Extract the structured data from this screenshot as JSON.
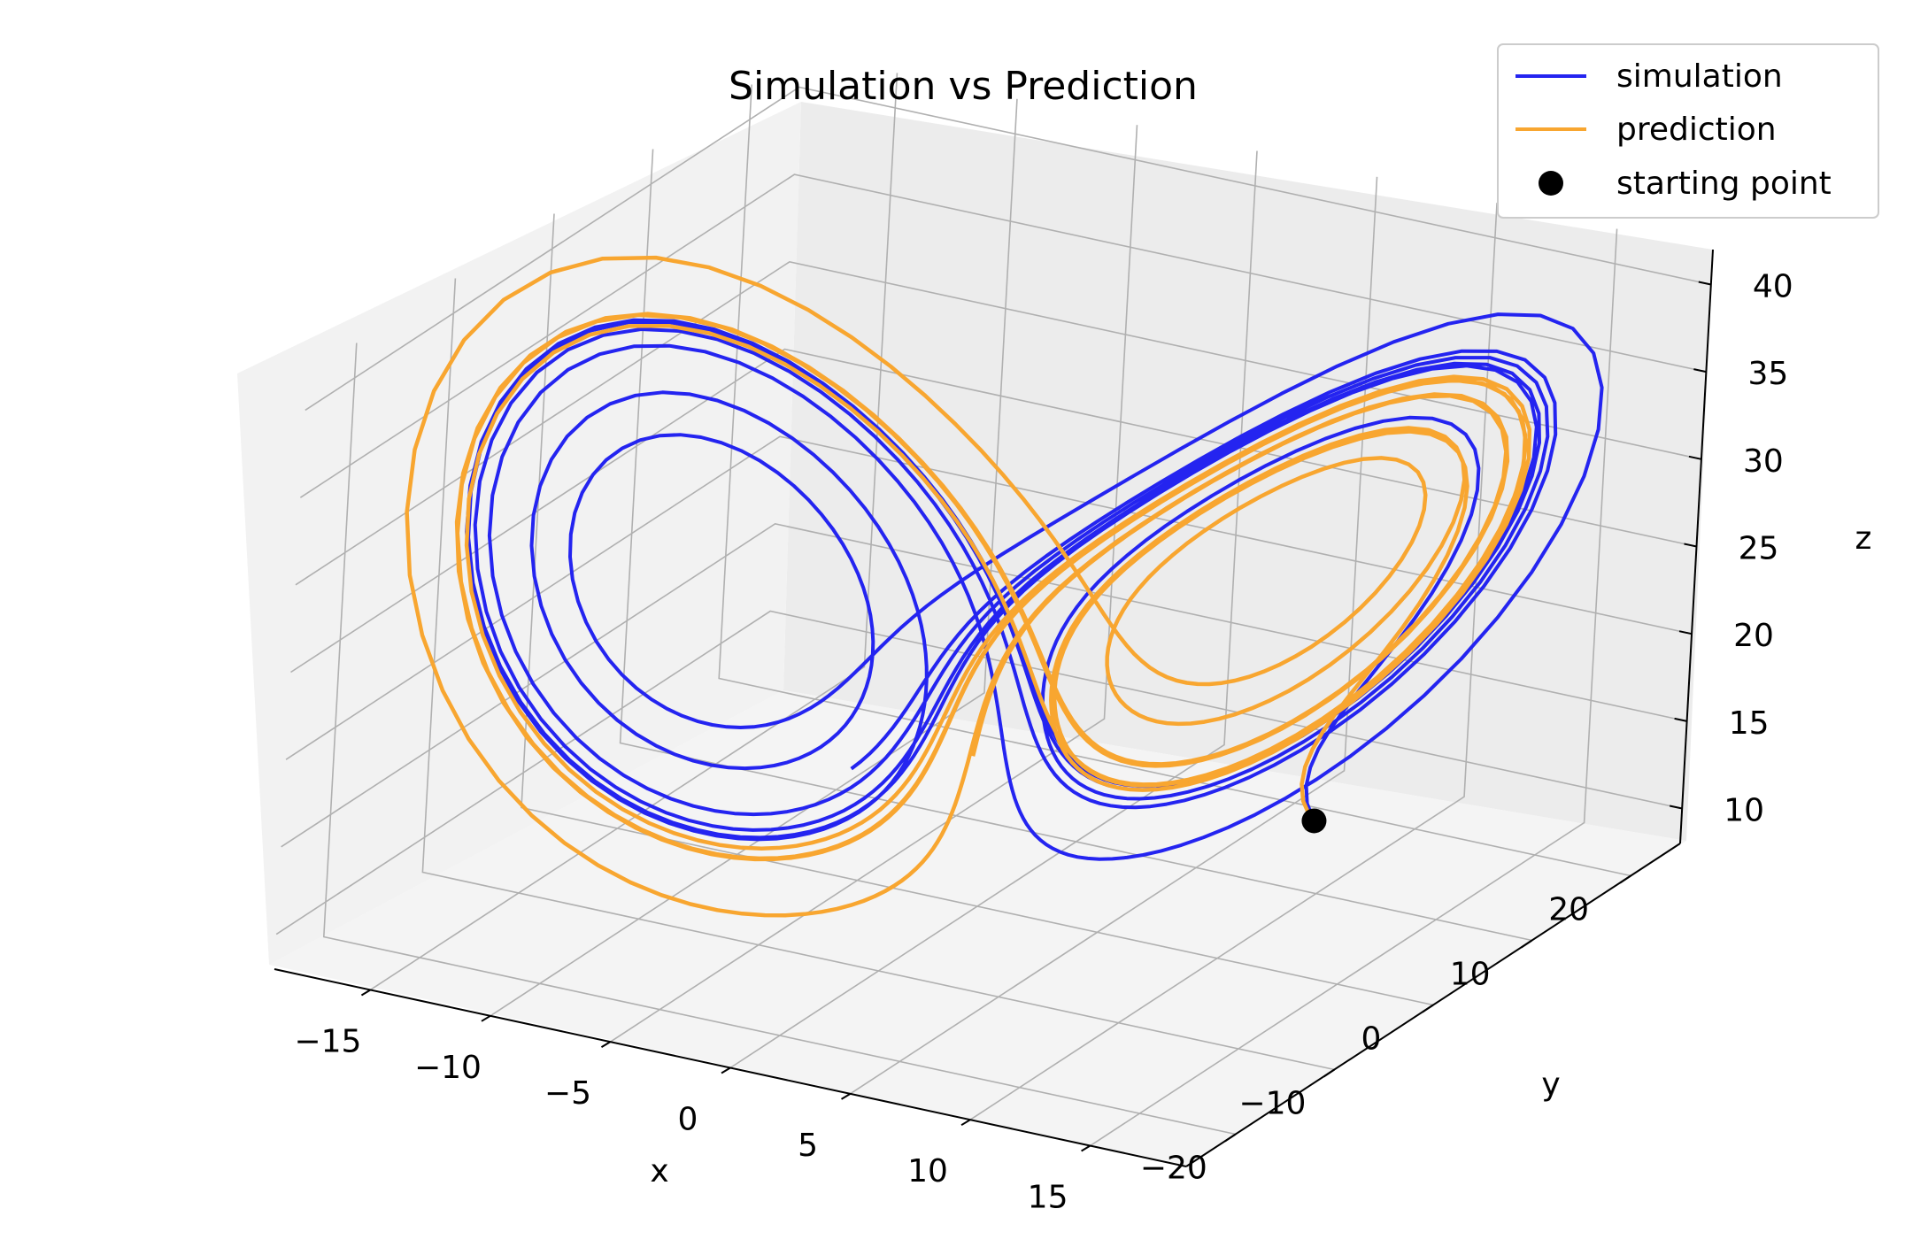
{
  "chart_data": {
    "type": "line",
    "title": "Simulation vs Prediction",
    "xlabel": "x",
    "ylabel": "y",
    "zlabel": "z",
    "projection": "3d",
    "xlim": [
      -19,
      19
    ],
    "ylim": [
      -25,
      25
    ],
    "zlim": [
      8,
      42
    ],
    "x_ticks": [
      -15,
      -10,
      -5,
      0,
      5,
      10,
      15
    ],
    "y_ticks": [
      -20,
      -10,
      0,
      10,
      20
    ],
    "z_ticks": [
      10,
      15,
      20,
      25,
      30,
      35,
      40
    ],
    "grid": true,
    "legend_position": "top-right",
    "colors": {
      "simulation": "#2424f0",
      "prediction": "#f8a630",
      "starting_point": "#000000"
    },
    "series": [
      {
        "name": "simulation",
        "marker": "line",
        "color": "#2424f0",
        "points_2d_shape": "lorenz-attractor",
        "x_range": [
          -18,
          17.5
        ],
        "y_range": [
          -23,
          24
        ],
        "z_range": [
          10,
          42
        ]
      },
      {
        "name": "prediction",
        "marker": "line",
        "color": "#f8a630",
        "points_2d_shape": "lorenz-attractor",
        "x_range": [
          -17.5,
          17
        ],
        "y_range": [
          -22,
          23
        ],
        "z_range": [
          10,
          41
        ]
      },
      {
        "name": "starting point",
        "marker": "circle",
        "color": "#000000",
        "x": 12.5,
        "y": 3.0,
        "z": 15.5
      }
    ],
    "legend": [
      {
        "label": "simulation",
        "color": "#2424f0",
        "kind": "line"
      },
      {
        "label": "prediction",
        "color": "#f8a630",
        "kind": "line"
      },
      {
        "label": "starting point",
        "color": "#000000",
        "kind": "dot"
      }
    ]
  }
}
